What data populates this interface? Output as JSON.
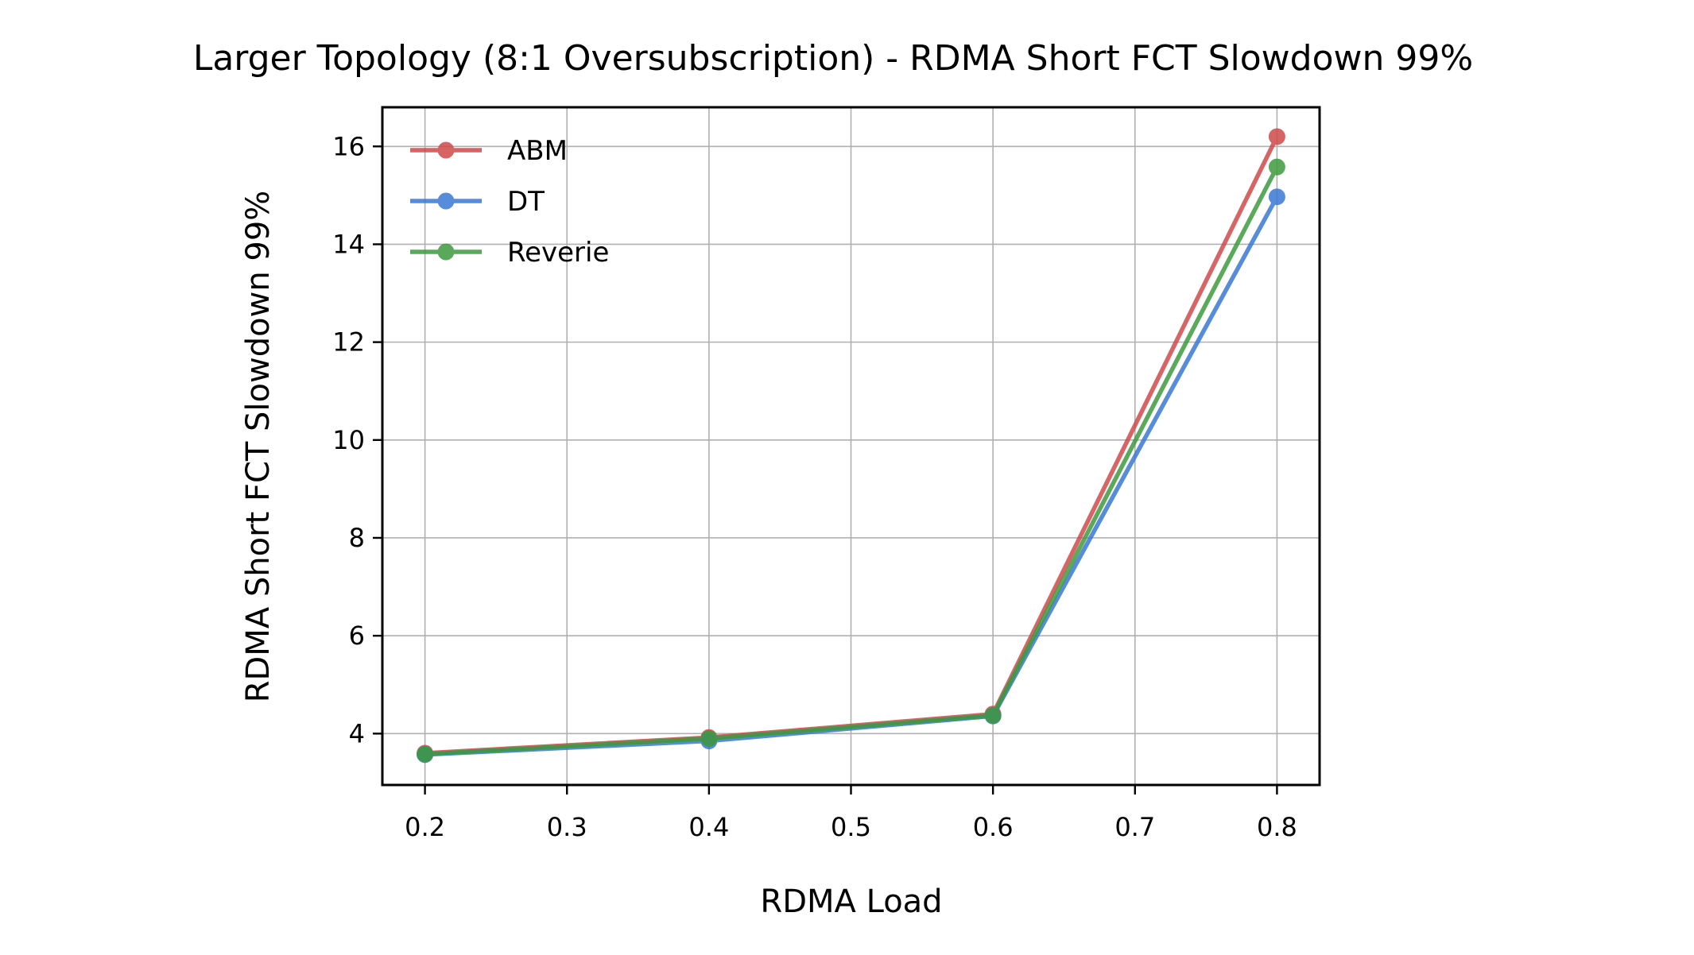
{
  "chart_data": {
    "type": "line",
    "title": "Larger Topology (8:1 Oversubscription) - RDMA Short FCT Slowdown 99%",
    "xlabel": "RDMA Load",
    "ylabel": "RDMA Short FCT Slowdown 99%",
    "x": [
      0.2,
      0.4,
      0.6,
      0.8
    ],
    "xlim": [
      0.17,
      0.83
    ],
    "ylim": [
      2.95,
      16.8
    ],
    "xticks": [
      0.2,
      0.3,
      0.4,
      0.5,
      0.6,
      0.7,
      0.8
    ],
    "yticks": [
      4,
      6,
      8,
      10,
      12,
      14,
      16
    ],
    "xtick_labels": [
      "0.2",
      "0.3",
      "0.4",
      "0.5",
      "0.6",
      "0.7",
      "0.8"
    ],
    "ytick_labels": [
      "4",
      "6",
      "8",
      "10",
      "12",
      "14",
      "16"
    ],
    "grid": true,
    "legend_position": "upper-left",
    "series": [
      {
        "name": "ABM",
        "color": "#d04a4a",
        "values": [
          3.6,
          3.92,
          4.4,
          16.2
        ]
      },
      {
        "name": "DT",
        "color": "#3a78d4",
        "values": [
          3.57,
          3.85,
          4.36,
          14.97
        ]
      },
      {
        "name": "Reverie",
        "color": "#3e9a3e",
        "values": [
          3.58,
          3.9,
          4.37,
          15.58
        ]
      }
    ]
  }
}
